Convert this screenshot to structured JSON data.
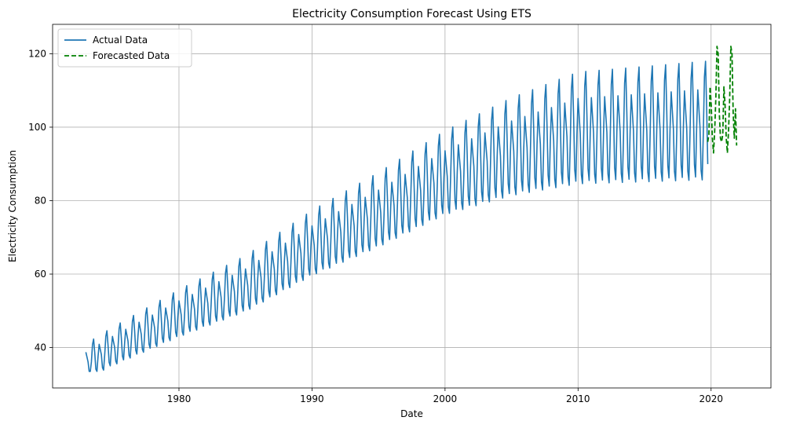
{
  "chart_data": {
    "type": "line",
    "title": "Electricity Consumption Forecast Using ETS",
    "xlabel": "Date",
    "ylabel": "Electricity Consumption",
    "xlim": [
      1970.5,
      2024.5
    ],
    "ylim": [
      29,
      128
    ],
    "xticks": [
      1980,
      1990,
      2000,
      2010,
      2020
    ],
    "yticks": [
      40,
      60,
      80,
      100,
      120
    ],
    "grid": true,
    "legend_position": "top-left",
    "series": [
      {
        "name": "Actual Data",
        "color": "#1f77b4",
        "style": "solid",
        "x_start": 1973.0,
        "x_end": 2019.75,
        "x_step_months": 1,
        "description_of_pattern": "monthly seasonal series, two peaks per year (winter and summer), rising trend from ~36 in 1973 to ~100 around 2010 then flat",
        "trend_points": [
          [
            1973,
            36
          ],
          [
            1975,
            40
          ],
          [
            1980,
            49
          ],
          [
            1985,
            57
          ],
          [
            1990,
            68
          ],
          [
            1995,
            77
          ],
          [
            2000,
            87
          ],
          [
            2005,
            94
          ],
          [
            2010,
            99
          ],
          [
            2015,
            100
          ],
          [
            2019.75,
            101
          ]
        ],
        "seasonal_amplitude_points": [
          [
            1973,
            5
          ],
          [
            1985,
            8
          ],
          [
            2000,
            12
          ],
          [
            2010,
            16
          ],
          [
            2019.75,
            17
          ]
        ]
      },
      {
        "name": "Forecasted Data",
        "color": "#008000",
        "style": "dashed",
        "x_start": 2019.75,
        "x_end": 2021.92,
        "values": [
          96,
          98,
          111,
          106,
          97,
          93,
          99,
          108,
          122,
          120,
          104,
          97,
          96,
          98,
          111,
          106,
          97,
          93,
          99,
          108,
          122,
          120,
          104,
          97,
          105,
          95
        ]
      }
    ]
  }
}
